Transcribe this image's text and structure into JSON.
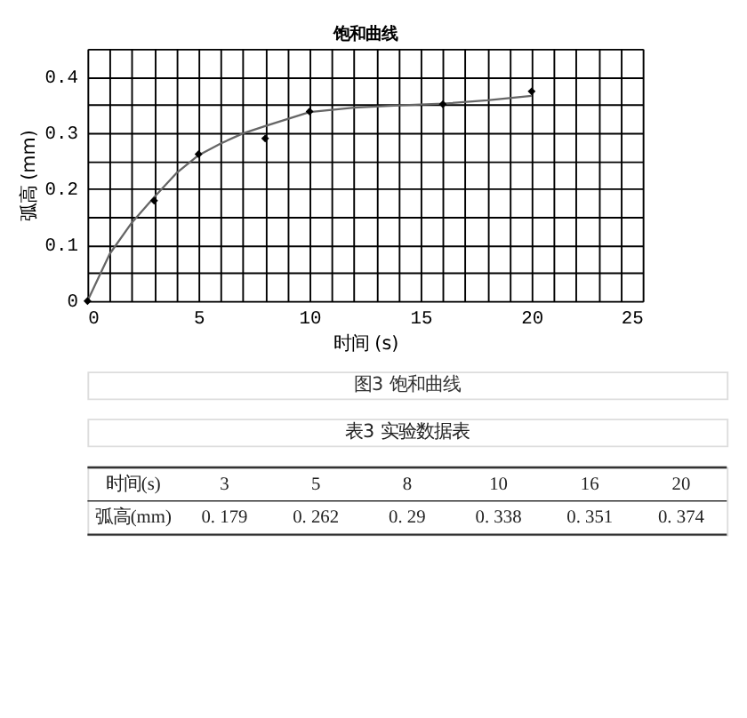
{
  "chart_data": [
    {
      "type": "scatter",
      "title": "饱和曲线",
      "xlabel": "时间 (s)",
      "ylabel": "弧高 (mm)",
      "xlim": [
        0,
        25
      ],
      "ylim": [
        0,
        0.45
      ],
      "xticks": [
        0,
        {
          "value": 1,
          "label": null
        },
        {
          "value": 2,
          "label": null
        },
        {
          "value": 3,
          "label": null
        },
        {
          "value": 4,
          "label": null
        },
        5,
        {
          "value": 6,
          "label": null
        },
        {
          "value": 7,
          "label": null
        },
        {
          "value": 8,
          "label": null
        },
        {
          "value": 9,
          "label": null
        },
        10,
        {
          "value": 11,
          "label": null
        },
        {
          "value": 12,
          "label": null
        },
        {
          "value": 13,
          "label": null
        },
        {
          "value": 14,
          "label": null
        },
        15,
        {
          "value": 16,
          "label": null
        },
        {
          "value": 17,
          "label": null
        },
        {
          "value": 18,
          "label": null
        },
        {
          "value": 19,
          "label": null
        },
        20,
        {
          "value": 21,
          "label": null
        },
        {
          "value": 22,
          "label": null
        },
        {
          "value": 23,
          "label": null
        },
        {
          "value": 24,
          "label": null
        },
        25
      ],
      "yticks": [
        0,
        {
          "value": 0.05,
          "label": null
        },
        0.1,
        {
          "value": 0.15,
          "label": null
        },
        0.2,
        {
          "value": 0.25,
          "label": null
        },
        0.3,
        {
          "value": 0.35,
          "label": null
        },
        0.4,
        {
          "value": 0.45,
          "label": null
        }
      ],
      "grid": true,
      "series": [
        {
          "type": "line",
          "color": "#666666",
          "line_style": "solid",
          "x": [
            0,
            1,
            2,
            3,
            4,
            5,
            6,
            7,
            8,
            10,
            12,
            14,
            16,
            18,
            20
          ],
          "values": [
            0,
            0.084,
            0.14,
            0.185,
            0.228,
            0.26,
            0.281,
            0.299,
            0.312,
            0.337,
            0.345,
            0.349,
            0.352,
            0.358,
            0.366
          ]
        },
        {
          "type": "scatter",
          "marker": "diamond",
          "color": "#000000",
          "x": [
            0,
            3,
            5,
            8,
            10,
            16,
            20
          ],
          "values": [
            0,
            0.179,
            0.262,
            0.29,
            0.338,
            0.351,
            0.374
          ]
        }
      ],
      "annotations": [
        "图3 饱和曲线"
      ]
    },
    {
      "type": "other",
      "title": "表3 实验数据表",
      "xlabel": "时间(s)",
      "ylabel": "弧高(mm)",
      "categories": [
        "3",
        "5",
        "8",
        "10",
        "16",
        "20"
      ],
      "value_labels": [
        "0. 179",
        "0. 262",
        "0. 29",
        "0. 338",
        "0. 351",
        "0. 374"
      ]
    }
  ]
}
